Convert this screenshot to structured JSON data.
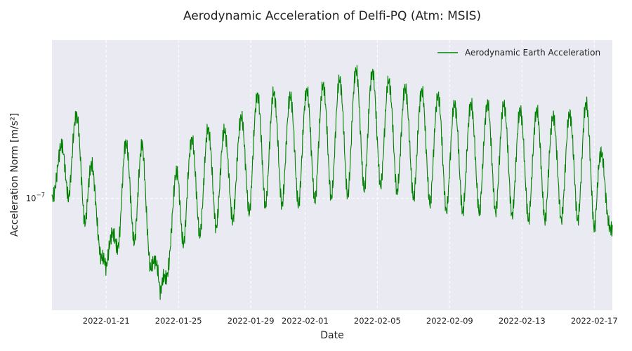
{
  "chart_data": {
    "type": "line",
    "title": "Aerodynamic Acceleration of Delfi-PQ (Atm: MSIS)",
    "xlabel": "Date",
    "ylabel": "Acceleration Norm [m/s²]",
    "y_scale": "log",
    "grid": true,
    "legend_position": "top-right",
    "xlim": [
      "2022-01-18",
      "2022-02-18"
    ],
    "ylim": [
      4.4e-08,
      3.2e-07
    ],
    "x_ticks": [
      "2022-01-21",
      "2022-01-25",
      "2022-01-29",
      "2022-02-01",
      "2022-02-05",
      "2022-02-09",
      "2022-02-13",
      "2022-02-17"
    ],
    "y_ticks": [
      {
        "value": 1e-07,
        "label_base": "10",
        "label_exp": "−7"
      }
    ],
    "colors": {
      "background": "#eaeaf2",
      "grid": "#ffffff",
      "series": "#008000"
    },
    "series": [
      {
        "name": "Aerodynamic Earth Acceleration",
        "x": [
          "2022-01-18",
          "2022-01-19",
          "2022-01-20",
          "2022-01-21",
          "2022-01-22",
          "2022-01-23",
          "2022-01-24",
          "2022-01-25",
          "2022-01-26",
          "2022-01-27",
          "2022-01-28",
          "2022-01-29",
          "2022-01-30",
          "2022-01-31",
          "2022-02-01",
          "2022-02-02",
          "2022-02-03",
          "2022-02-04",
          "2022-02-05",
          "2022-02-06",
          "2022-02-07",
          "2022-02-08",
          "2022-02-09",
          "2022-02-10",
          "2022-02-11",
          "2022-02-12",
          "2022-02-13",
          "2022-02-14",
          "2022-02-15",
          "2022-02-16",
          "2022-02-17",
          "2022-02-18"
        ],
        "y": [
          1.1e-07,
          2e-07,
          1.6e-07,
          6e-08,
          1.5e-07,
          1.5e-07,
          5e-08,
          1.4e-07,
          1.6e-07,
          1.7e-07,
          1.6e-07,
          2.1e-07,
          2.2e-07,
          2.1e-07,
          2.2e-07,
          2.3e-07,
          2.4e-07,
          2.6e-07,
          2.5e-07,
          2.3e-07,
          2.2e-07,
          2.2e-07,
          2e-07,
          2e-07,
          2e-07,
          2e-07,
          1.9e-07,
          1.9e-07,
          1.8e-07,
          1.9e-07,
          2.1e-07,
          8e-08
        ],
        "y_min": [
          1e-07,
          1e-07,
          8e-08,
          6e-08,
          7.5e-08,
          7e-08,
          5e-08,
          7e-08,
          7.5e-08,
          8e-08,
          8.5e-08,
          9e-08,
          9.5e-08,
          9.5e-08,
          9.5e-08,
          1e-07,
          1e-07,
          1.05e-07,
          1.1e-07,
          1.05e-07,
          1e-07,
          9.5e-08,
          9e-08,
          9e-08,
          9e-08,
          9e-08,
          8.5e-08,
          8.5e-08,
          8.5e-08,
          8.5e-08,
          8e-08,
          8e-08
        ]
      }
    ]
  }
}
